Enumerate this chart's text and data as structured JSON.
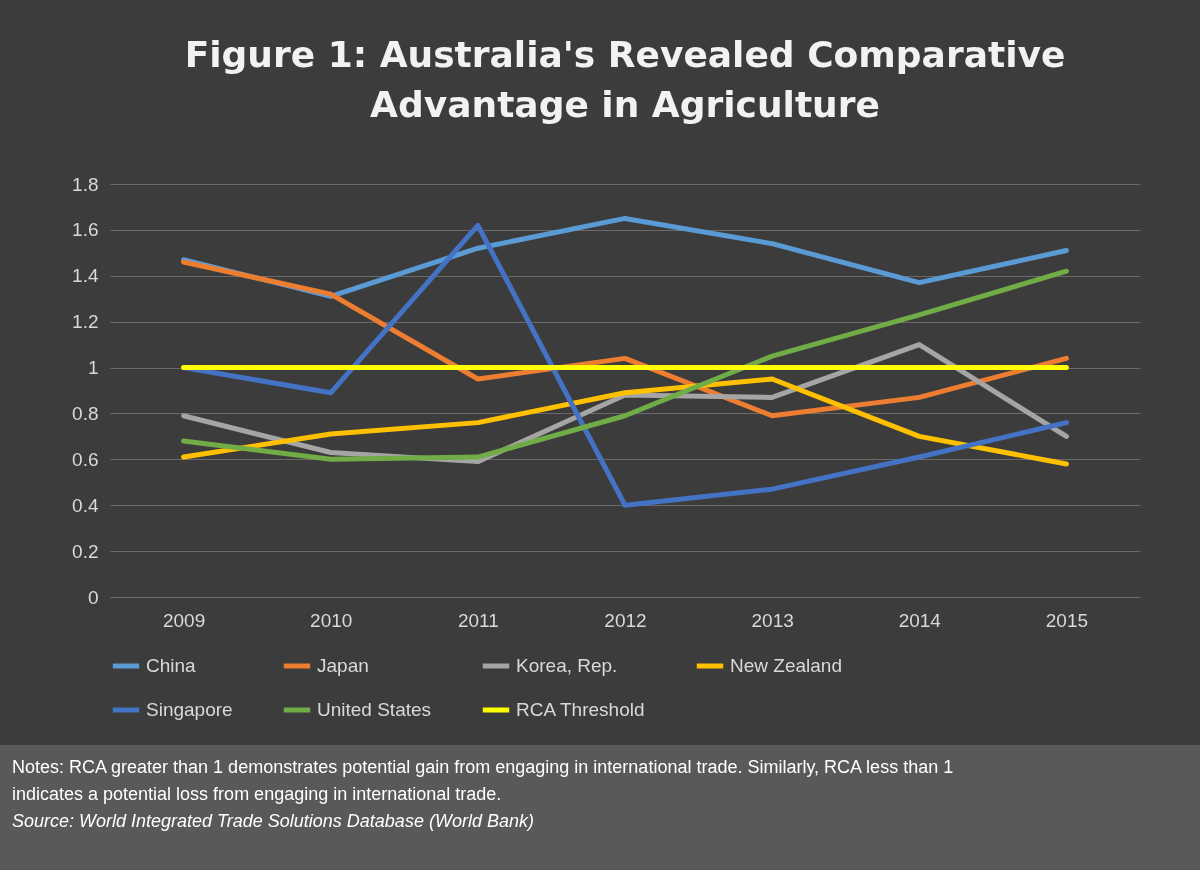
{
  "chart_data": {
    "type": "line",
    "title": "Figure 1: Australia's Revealed Comparative Advantage in Agriculture",
    "categories": [
      "2009",
      "2010",
      "2011",
      "2012",
      "2013",
      "2014",
      "2015"
    ],
    "series": [
      {
        "name": "China",
        "color": "#5b9bd5",
        "values": [
          1.47,
          1.31,
          1.52,
          1.65,
          1.54,
          1.37,
          1.51
        ]
      },
      {
        "name": "Japan",
        "color": "#ed7d31",
        "values": [
          1.46,
          1.32,
          0.95,
          1.04,
          0.79,
          0.87,
          1.04
        ]
      },
      {
        "name": "Korea, Rep.",
        "color": "#a5a5a5",
        "values": [
          0.79,
          0.63,
          0.59,
          0.88,
          0.87,
          1.1,
          0.7
        ]
      },
      {
        "name": "New Zealand",
        "color": "#ffc000",
        "values": [
          0.61,
          0.71,
          0.76,
          0.89,
          0.95,
          0.7,
          0.58
        ]
      },
      {
        "name": "Singapore",
        "color": "#4472c4",
        "values": [
          1.0,
          0.89,
          1.62,
          0.4,
          0.47,
          0.61,
          0.76
        ]
      },
      {
        "name": "United States",
        "color": "#70ad47",
        "values": [
          0.68,
          0.6,
          0.61,
          0.79,
          1.05,
          1.23,
          1.42
        ]
      },
      {
        "name": "RCA Threshold",
        "color": "#ffff00",
        "values": [
          1,
          1,
          1,
          1,
          1,
          1,
          1
        ]
      }
    ],
    "ylim": [
      0,
      1.8
    ],
    "yticks": [
      0,
      0.2,
      0.4,
      0.6,
      0.8,
      1,
      1.2,
      1.4,
      1.6,
      1.8
    ],
    "grid": "y",
    "legend": "bottom",
    "marker": "none",
    "line_style": "solid",
    "annotations": [
      "Notes: RCA greater than 1 demonstrates potential gain from engaging in international trade. Similarly, RCA less than 1 indicates a potential loss from engaging in international trade.",
      "Source: World Integrated Trade Solutions Database (World Bank)"
    ]
  }
}
